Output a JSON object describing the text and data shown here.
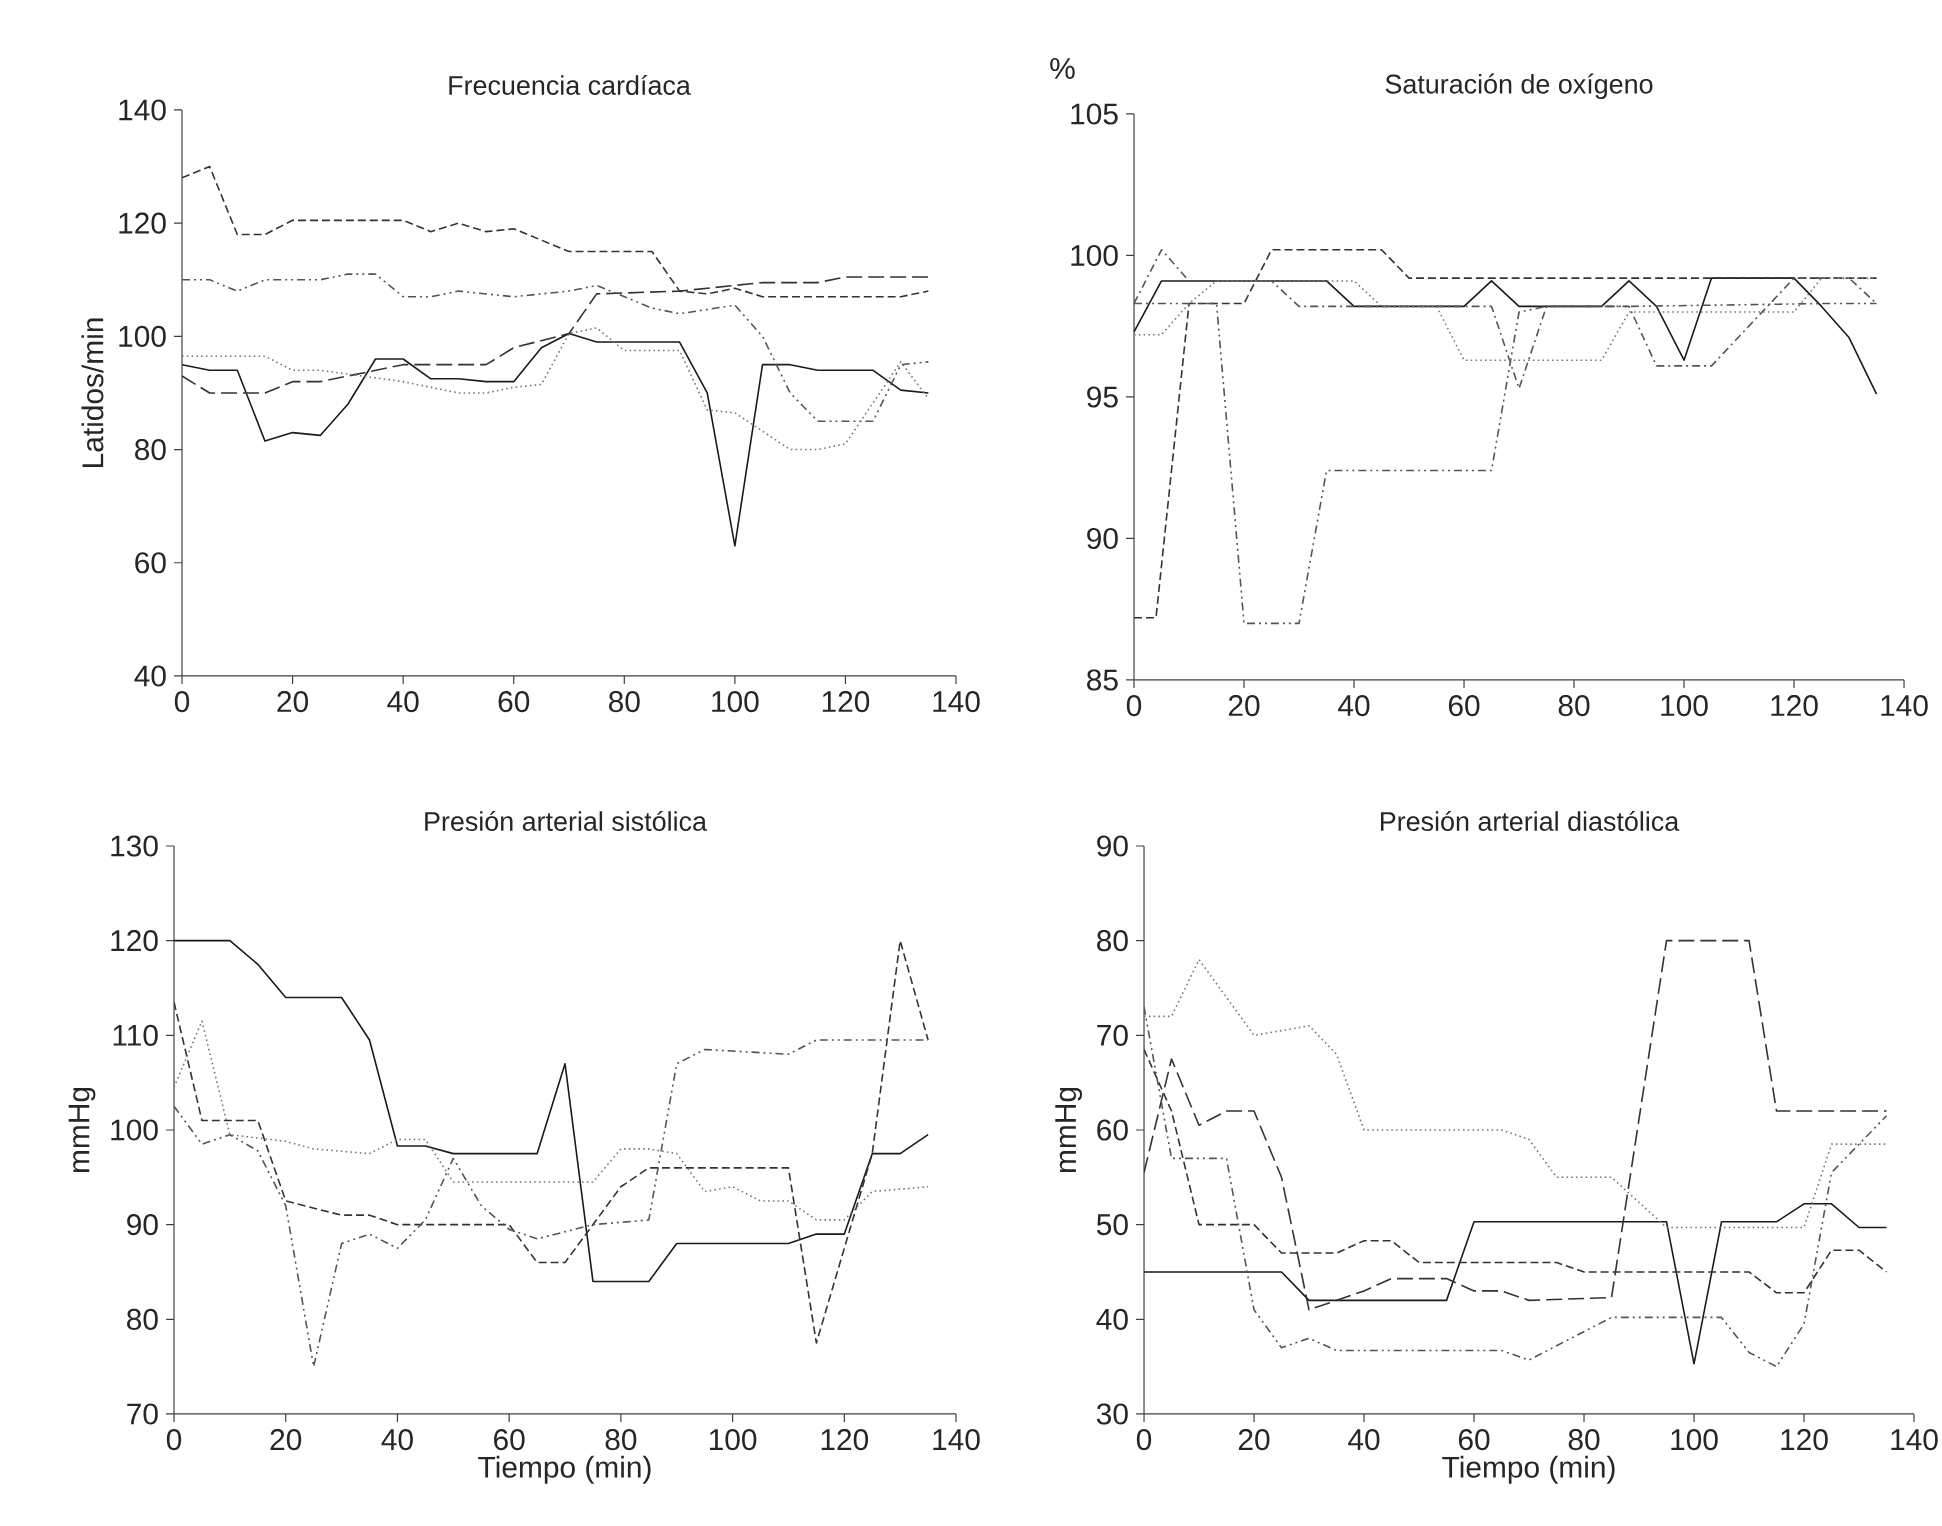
{
  "chart_data": [
    {
      "type": "line",
      "title": "Frecuencia cardíaca",
      "ylabel": "Latidos/min",
      "xlim": [
        0,
        140
      ],
      "xticks": [
        0,
        20,
        40,
        60,
        80,
        100,
        120,
        140
      ],
      "ylim": [
        40,
        140
      ],
      "yticks": [
        40,
        60,
        80,
        100,
        120,
        140
      ],
      "grid": false,
      "marker": "none",
      "series": [
        {
          "color": "#1a1a1a",
          "line_style": "solid",
          "x": [
            0,
            5,
            10,
            15,
            20,
            25,
            30,
            35,
            40,
            45,
            50,
            55,
            60,
            65,
            70,
            75,
            90,
            95,
            100,
            105,
            110,
            115,
            125,
            130,
            135
          ],
          "values": [
            95,
            94,
            94,
            81.5,
            83,
            82.5,
            88,
            96,
            96,
            92.5,
            92.5,
            92,
            92,
            98,
            100.5,
            99,
            99,
            90,
            63,
            95,
            95,
            94,
            94,
            90.5,
            90
          ]
        },
        {
          "color": "#333333",
          "line_style": "dashed",
          "x": [
            0,
            5,
            10,
            15,
            20,
            40,
            45,
            50,
            55,
            60,
            70,
            85,
            90,
            95,
            100,
            105,
            130,
            135
          ],
          "values": [
            128,
            130,
            118,
            118,
            120.5,
            120.5,
            118.5,
            120,
            118.5,
            119,
            115,
            115,
            108,
            107.5,
            108.5,
            107,
            107,
            108
          ]
        },
        {
          "color": "#333333",
          "line_style": "longdashed",
          "x": [
            0,
            5,
            15,
            20,
            25,
            40,
            55,
            60,
            70,
            75,
            90,
            100,
            105,
            115,
            120,
            135
          ],
          "values": [
            93,
            90,
            90,
            92,
            92,
            95,
            95,
            98,
            100.5,
            107.5,
            108,
            109,
            109.5,
            109.5,
            110.5,
            110.5
          ]
        },
        {
          "color": "#555555",
          "line_style": "dashdotdot",
          "x": [
            0,
            5,
            10,
            15,
            25,
            30,
            35,
            40,
            45,
            50,
            60,
            70,
            75,
            85,
            90,
            100,
            105,
            110,
            115,
            125,
            130,
            135
          ],
          "values": [
            110,
            110,
            108,
            110,
            110,
            111,
            111,
            107,
            107,
            108,
            107,
            108,
            109,
            105,
            104,
            105.5,
            100,
            90,
            85,
            85,
            95,
            95.5
          ]
        },
        {
          "color": "#777777",
          "line_style": "dotted",
          "x": [
            0,
            15,
            20,
            25,
            40,
            50,
            55,
            60,
            65,
            70,
            75,
            80,
            90,
            95,
            100,
            110,
            115,
            120,
            130,
            135
          ],
          "values": [
            96.5,
            96.5,
            94,
            94,
            92,
            90,
            90,
            91,
            91.5,
            100.5,
            101.5,
            97.5,
            97.5,
            87,
            86.5,
            80,
            80,
            81,
            95.5,
            89
          ]
        }
      ]
    },
    {
      "type": "line",
      "title": "Saturación de oxígeno",
      "ylabel": "%",
      "xlim": [
        0,
        140
      ],
      "xticks": [
        0,
        20,
        40,
        60,
        80,
        100,
        120,
        140
      ],
      "ylim": [
        85,
        105
      ],
      "yticks": [
        85,
        90,
        95,
        100,
        105
      ],
      "grid": false,
      "marker": "none",
      "series": [
        {
          "color": "#1a1a1a",
          "line_style": "solid",
          "x": [
            0,
            5,
            35,
            40,
            60,
            65,
            70,
            85,
            90,
            95,
            100,
            105,
            120,
            125,
            130,
            135
          ],
          "values": [
            97.3,
            99.1,
            99.1,
            98.2,
            98.2,
            99.1,
            98.2,
            98.2,
            99.1,
            98.2,
            96.3,
            99.2,
            99.2,
            98.2,
            97.1,
            95.1
          ]
        },
        {
          "color": "#333333",
          "line_style": "dashed",
          "x": [
            0,
            4,
            10,
            20,
            25,
            45,
            50,
            135
          ],
          "values": [
            87.2,
            87.2,
            98.3,
            98.3,
            100.2,
            100.2,
            99.2,
            99.2
          ]
        },
        {
          "color": "#555555",
          "line_style": "dashdot",
          "x": [
            0,
            5,
            10,
            25,
            30,
            65,
            70,
            75,
            90,
            95,
            105,
            120,
            130,
            135
          ],
          "values": [
            98.3,
            100.2,
            99.1,
            99.1,
            98.2,
            98.2,
            95.3,
            98.2,
            98.2,
            96.1,
            96.1,
            99.2,
            99.2,
            98.3
          ]
        },
        {
          "color": "#555555",
          "line_style": "dashdotdot",
          "x": [
            0,
            10,
            15,
            20,
            30,
            35,
            65,
            70,
            75,
            90,
            125,
            135
          ],
          "values": [
            98.3,
            98.3,
            98.3,
            87,
            87,
            92.4,
            92.4,
            98,
            98.2,
            98.2,
            98.3,
            98.3
          ]
        },
        {
          "color": "#777777",
          "line_style": "dotted",
          "x": [
            0,
            5,
            10,
            15,
            40,
            45,
            55,
            60,
            85,
            90,
            120,
            125,
            135
          ],
          "values": [
            97.2,
            97.2,
            98.3,
            99.1,
            99.1,
            98.2,
            98.2,
            96.3,
            96.3,
            98,
            98,
            99.2,
            99.2
          ]
        }
      ]
    },
    {
      "type": "line",
      "title": "Presión arterial sistólica",
      "xlabel": "Tiempo (min)",
      "ylabel": "mmHg",
      "xlim": [
        0,
        140
      ],
      "xticks": [
        0,
        20,
        40,
        60,
        80,
        100,
        120,
        140
      ],
      "ylim": [
        70,
        130
      ],
      "yticks": [
        70,
        80,
        90,
        100,
        110,
        120,
        130
      ],
      "grid": false,
      "marker": "none",
      "series": [
        {
          "color": "#1a1a1a",
          "line_style": "solid",
          "x": [
            0,
            10,
            15,
            20,
            30,
            35,
            40,
            45,
            50,
            65,
            70,
            75,
            85,
            90,
            110,
            115,
            120,
            125,
            130,
            135
          ],
          "values": [
            120,
            120,
            117.5,
            114,
            114,
            109.5,
            98.3,
            98.3,
            97.5,
            97.5,
            107,
            84,
            84,
            88,
            88,
            89,
            89,
            97.5,
            97.5,
            99.5
          ]
        },
        {
          "color": "#333333",
          "line_style": "dashed",
          "x": [
            0,
            5,
            15,
            20,
            30,
            35,
            40,
            60,
            65,
            70,
            80,
            85,
            110,
            115,
            125,
            130,
            135
          ],
          "values": [
            113.5,
            101,
            101,
            92.5,
            91,
            91,
            90,
            90,
            86,
            86,
            94,
            96,
            96,
            77.5,
            97.5,
            120,
            109.5
          ]
        },
        {
          "color": "#555555",
          "line_style": "dashdotdot",
          "x": [
            0,
            5,
            10,
            15,
            20,
            25,
            30,
            35,
            40,
            45,
            50,
            55,
            60,
            65,
            75,
            85,
            90,
            95,
            110,
            115,
            135
          ],
          "values": [
            102.5,
            98.5,
            99.5,
            97.8,
            92,
            75,
            88,
            89,
            87.5,
            90.5,
            97,
            92,
            89.5,
            88.5,
            90,
            90.5,
            107,
            108.5,
            108,
            109.5,
            109.5
          ]
        },
        {
          "color": "#777777",
          "line_style": "dotted",
          "x": [
            0,
            5,
            10,
            20,
            25,
            35,
            40,
            45,
            50,
            75,
            80,
            85,
            90,
            95,
            100,
            105,
            110,
            115,
            120,
            125,
            135
          ],
          "values": [
            104.5,
            111.5,
            99.5,
            98.8,
            98,
            97.5,
            99,
            99,
            94.5,
            94.5,
            98,
            98,
            97.5,
            93.5,
            94,
            92.5,
            92.5,
            90.5,
            90.5,
            93.5,
            94
          ]
        }
      ]
    },
    {
      "type": "line",
      "title": "Presión arterial diastólica",
      "xlabel": "Tiempo (min)",
      "ylabel": "mmHg",
      "xlim": [
        0,
        140
      ],
      "xticks": [
        0,
        20,
        40,
        60,
        80,
        100,
        120,
        140
      ],
      "ylim": [
        30,
        90
      ],
      "yticks": [
        30,
        40,
        50,
        60,
        70,
        80,
        90
      ],
      "grid": false,
      "marker": "none",
      "series": [
        {
          "color": "#1a1a1a",
          "line_style": "solid",
          "x": [
            0,
            25,
            30,
            55,
            60,
            95,
            100,
            105,
            115,
            120,
            125,
            130,
            135
          ],
          "values": [
            45,
            45,
            42,
            42,
            50.3,
            50.3,
            35.3,
            50.3,
            50.3,
            52.2,
            52.2,
            49.7,
            49.7
          ]
        },
        {
          "color": "#333333",
          "line_style": "longdashed",
          "x": [
            0,
            5,
            10,
            15,
            20,
            25,
            30,
            35,
            40,
            45,
            55,
            60,
            65,
            70,
            85,
            95,
            110,
            115,
            135
          ],
          "values": [
            55.5,
            67.5,
            60.5,
            62,
            62,
            55,
            41,
            42,
            43,
            44.3,
            44.3,
            43,
            43,
            42,
            42.3,
            80,
            80,
            62,
            62
          ]
        },
        {
          "color": "#333333",
          "line_style": "dashed",
          "x": [
            0,
            5,
            10,
            20,
            25,
            35,
            40,
            45,
            50,
            75,
            80,
            110,
            115,
            120,
            125,
            130,
            135
          ],
          "values": [
            68.5,
            62,
            50,
            50,
            47,
            47,
            48.3,
            48.3,
            46,
            46,
            45,
            45,
            42.8,
            42.8,
            47.3,
            47.3,
            45
          ]
        },
        {
          "color": "#555555",
          "line_style": "dashdotdot",
          "x": [
            0,
            5,
            15,
            20,
            25,
            30,
            35,
            65,
            70,
            85,
            105,
            110,
            115,
            120,
            125,
            135
          ],
          "values": [
            73,
            57,
            57,
            41,
            37,
            38,
            36.7,
            36.7,
            35.7,
            40.2,
            40.2,
            36.5,
            35,
            39.5,
            55.5,
            61.5
          ]
        },
        {
          "color": "#777777",
          "line_style": "dotted",
          "x": [
            0,
            5,
            10,
            20,
            30,
            35,
            40,
            65,
            70,
            75,
            85,
            95,
            120,
            125,
            135
          ],
          "values": [
            72,
            72,
            78,
            70,
            71,
            68,
            60,
            60,
            59,
            55,
            55,
            49.7,
            49.7,
            58.5,
            58.5
          ]
        }
      ]
    }
  ]
}
